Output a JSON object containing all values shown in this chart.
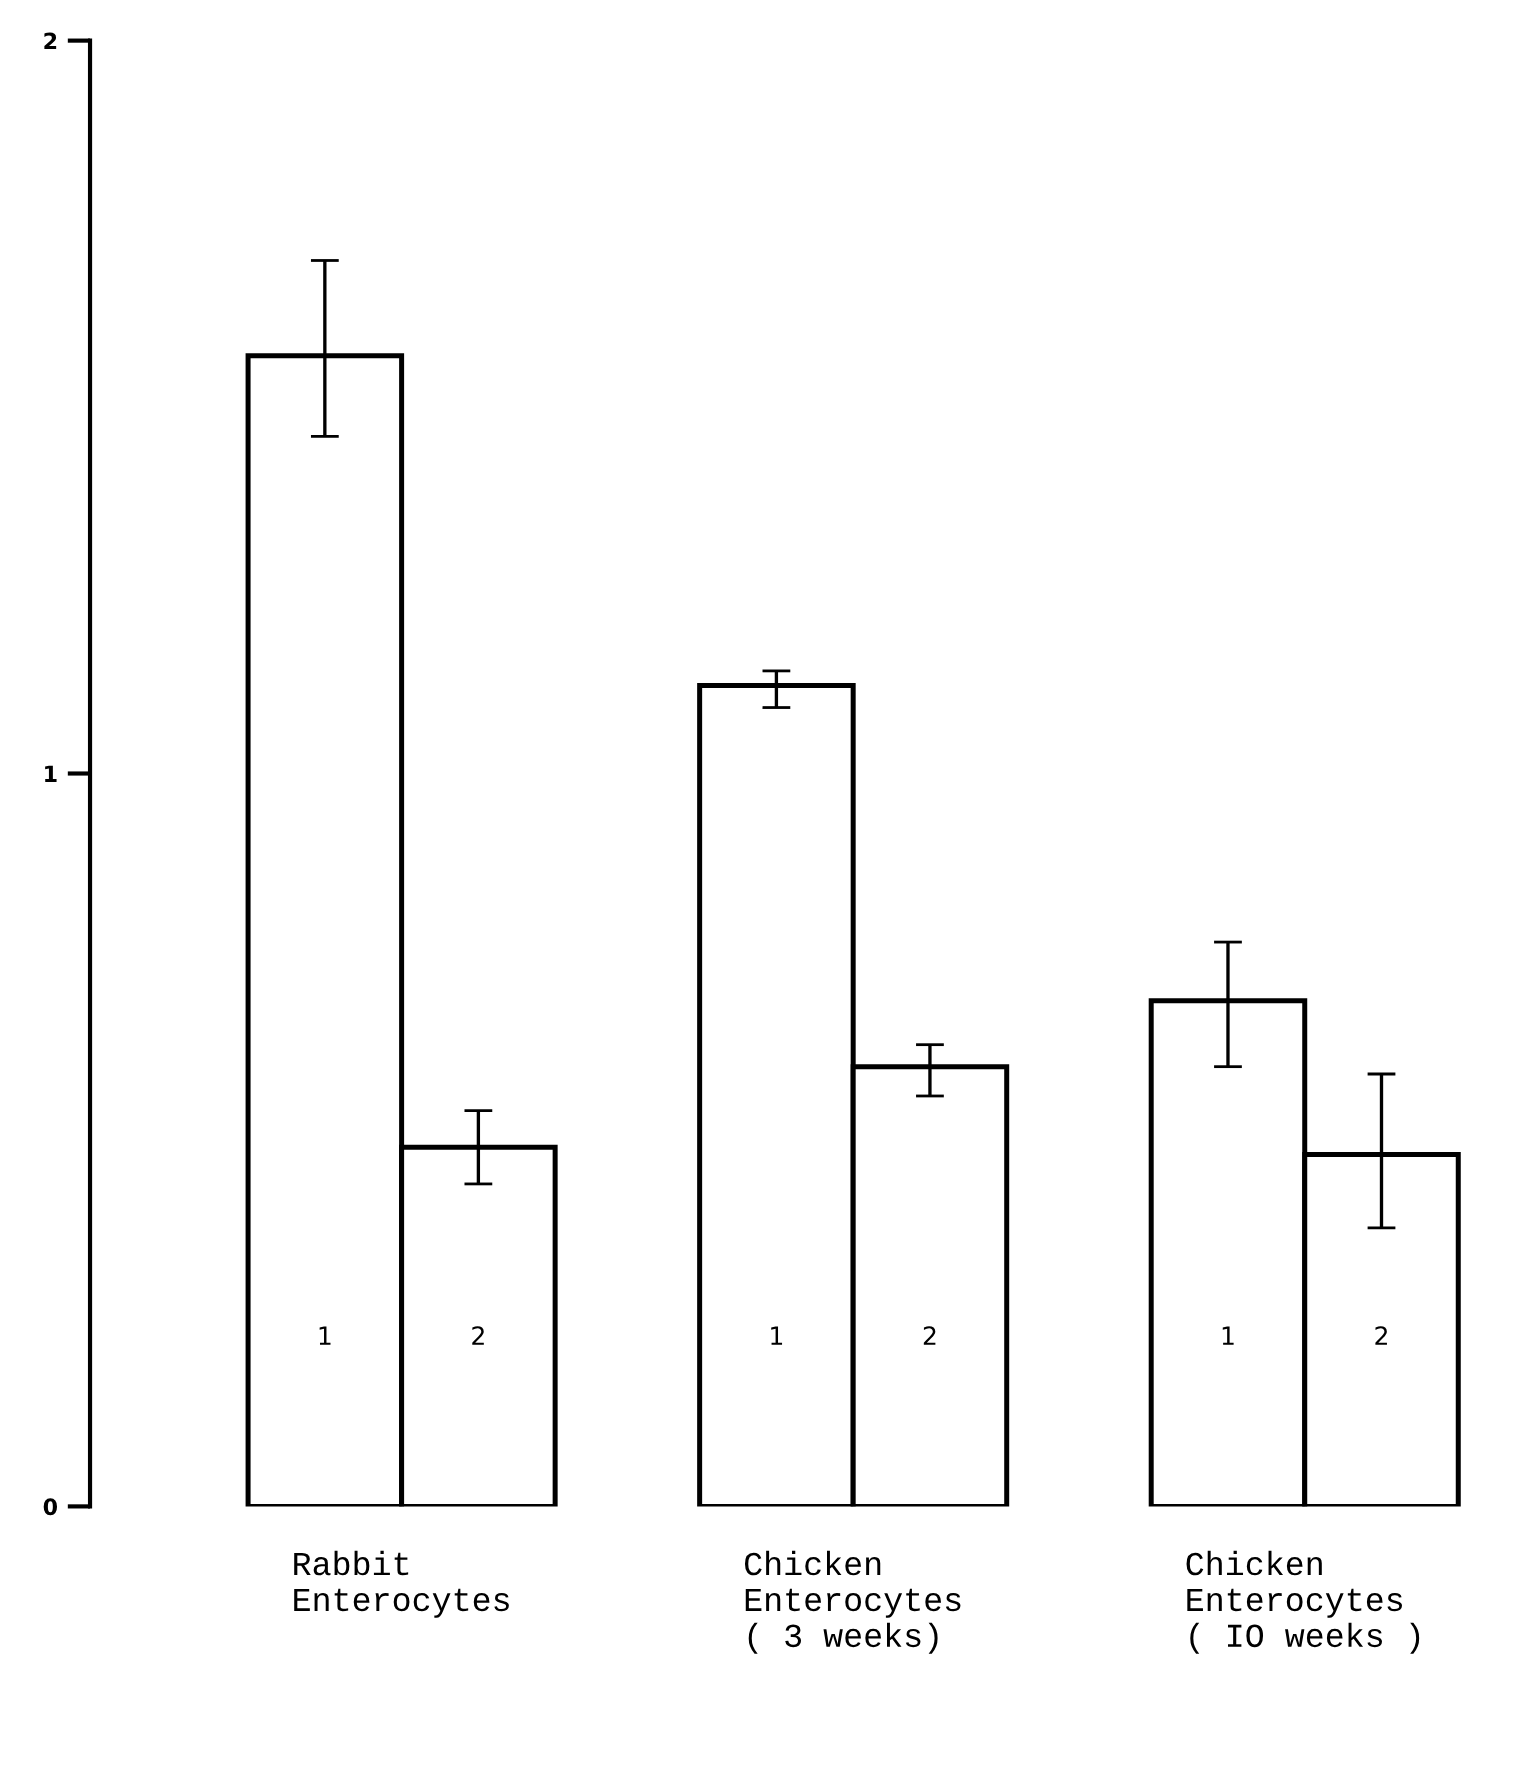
{
  "chart_data": {
    "type": "bar",
    "categories": [
      "Rabbit\nEnterocytes",
      "Chicken\nEnterocytes\n( 3 weeks)",
      "Chicken\nEnterocytes\n( IO weeks )"
    ],
    "series": [
      {
        "name": "1",
        "color": "#ffffff",
        "values": [
          1.57,
          1.12,
          0.69
        ],
        "errors": [
          [
            1.46,
            1.7
          ],
          [
            1.09,
            1.14
          ],
          [
            0.6,
            0.77
          ]
        ]
      },
      {
        "name": "2",
        "color": "#ffffff",
        "values": [
          0.49,
          0.6,
          0.48
        ],
        "errors": [
          [
            0.44,
            0.54
          ],
          [
            0.56,
            0.63
          ],
          [
            0.38,
            0.59
          ]
        ]
      }
    ],
    "ylim": [
      0,
      2
    ],
    "yticks": [
      0,
      1,
      2
    ],
    "grid": false,
    "legend": false
  }
}
